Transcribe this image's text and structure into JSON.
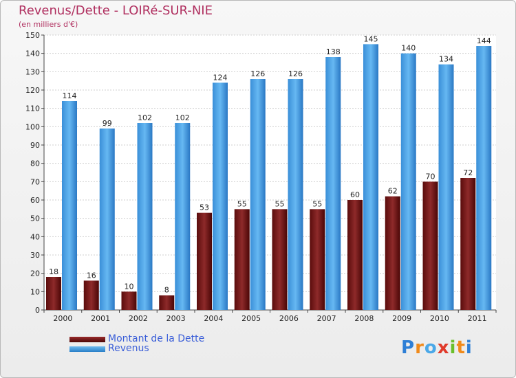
{
  "chart_data": {
    "type": "bar",
    "title": "Revenus/Dette - LOIRé-SUR-NIE",
    "subtitle": "(en milliers d'€)",
    "categories": [
      "2000",
      "2001",
      "2002",
      "2003",
      "2004",
      "2005",
      "2006",
      "2007",
      "2008",
      "2009",
      "2010",
      "2011"
    ],
    "series": [
      {
        "name": "Montant de la Dette",
        "color": "#7a1a1a",
        "values": [
          18,
          16,
          10,
          8,
          53,
          55,
          55,
          55,
          60,
          62,
          70,
          72
        ]
      },
      {
        "name": "Revenus",
        "color": "#4aa3e8",
        "values": [
          114,
          99,
          102,
          102,
          124,
          126,
          126,
          138,
          145,
          140,
          134,
          144
        ]
      }
    ],
    "ylim": [
      0,
      150
    ],
    "yticks": [
      0,
      10,
      20,
      30,
      40,
      50,
      60,
      70,
      80,
      90,
      100,
      110,
      120,
      130,
      140,
      150
    ],
    "grid": true,
    "legend": "bottom-left"
  },
  "logo": {
    "letters": [
      "P",
      "r",
      "o",
      "x",
      "i",
      "t",
      "i"
    ],
    "colors": [
      "#2e7fd6",
      "#f08a1a",
      "#4aa8e8",
      "#e03a2a",
      "#6abf2a",
      "#f08a1a",
      "#2e7fd6"
    ]
  }
}
